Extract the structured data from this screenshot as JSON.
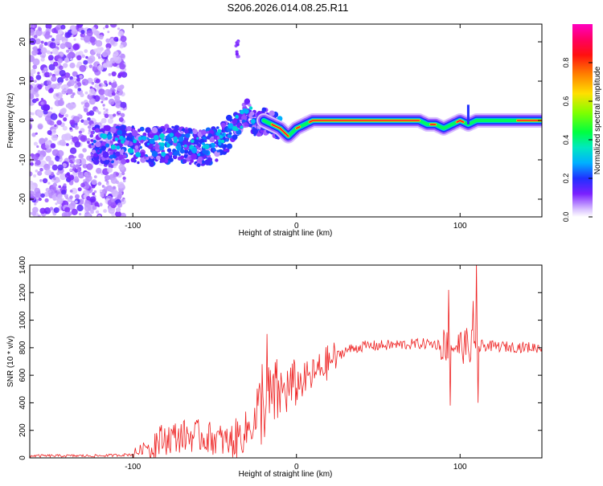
{
  "title": "S206.2026.014.08.25.R11",
  "chart_data": [
    {
      "type": "heatmap",
      "xlabel": "Height of straight line (km)",
      "ylabel": "Frequency (Hz)",
      "xlim": [
        -163,
        150
      ],
      "ylim": [
        -24.5,
        24.5
      ],
      "xticks": [
        -100,
        0,
        100
      ],
      "xtick_labels": [
        "-100",
        "0",
        "100"
      ],
      "yticks": [
        -20,
        -10,
        0,
        10,
        20
      ],
      "ytick_labels": [
        "-20",
        "-10",
        "0",
        "10",
        "20"
      ],
      "colorbar": {
        "label": "Normalized spectral amplitude",
        "range": [
          0,
          1
        ],
        "ticks": [
          0.0,
          0.2,
          0.4,
          0.6,
          0.8
        ],
        "tick_labels": [
          "0.0",
          "0.2",
          "0.4",
          "0.6",
          "0.8"
        ],
        "colors": [
          "#ffffff",
          "#c8a0ff",
          "#6a00ff",
          "#0030ff",
          "#00d0ff",
          "#00ff60",
          "#c0ff00",
          "#ffd000",
          "#ff4000",
          "#ff0040",
          "#ff00c0"
        ]
      },
      "ridge": {
        "x": [
          -120,
          -100,
          -90,
          -80,
          -70,
          -60,
          -50,
          -40,
          -35,
          -30,
          -25,
          -20,
          -15,
          -10,
          -5,
          0,
          5,
          10,
          20,
          40,
          60,
          75,
          80,
          85,
          90,
          95,
          100,
          105,
          110,
          120,
          130,
          140,
          150
        ],
        "freq": [
          -6,
          -6,
          -7,
          -6,
          -6,
          -7,
          -6,
          -3,
          0,
          2,
          -1,
          0,
          -1,
          -2,
          -4,
          -2,
          -1,
          0,
          0,
          0,
          0,
          0,
          -1,
          -1,
          -2,
          -1,
          0,
          -1,
          0,
          0,
          0,
          0,
          0
        ]
      }
    },
    {
      "type": "line",
      "xlabel": "Height of straight line (km)",
      "ylabel": "SNR (10 * v/v)",
      "xlim": [
        -163,
        150
      ],
      "ylim": [
        0,
        1400
      ],
      "xticks": [
        -100,
        0,
        100
      ],
      "xtick_labels": [
        "-100",
        "0",
        "100"
      ],
      "yticks": [
        0,
        200,
        400,
        600,
        800,
        1000,
        1200,
        1400
      ],
      "ytick_labels": [
        "0",
        "200",
        "400",
        "600",
        "800",
        "1000",
        "1200",
        "1400"
      ],
      "color": "#ee2222",
      "trend": {
        "x": [
          -163,
          -120,
          -100,
          -95,
          -90,
          -80,
          -70,
          -60,
          -50,
          -40,
          -30,
          -20,
          -15,
          -10,
          0,
          10,
          20,
          30,
          40,
          60,
          80,
          90,
          95,
          100,
          110,
          120,
          150
        ],
        "y": [
          15,
          15,
          25,
          60,
          100,
          140,
          160,
          160,
          140,
          110,
          200,
          380,
          430,
          470,
          530,
          600,
          700,
          780,
          810,
          820,
          830,
          820,
          820,
          810,
          820,
          810,
          800
        ]
      },
      "spikes": [
        {
          "x": -21,
          "y": 680
        },
        {
          "x": -18,
          "y": 900
        },
        {
          "x": 93,
          "y": 1220
        },
        {
          "x": 94,
          "y": 380
        },
        {
          "x": 108,
          "y": 1140
        },
        {
          "x": 110,
          "y": 1430
        },
        {
          "x": 111,
          "y": 400
        }
      ]
    }
  ]
}
